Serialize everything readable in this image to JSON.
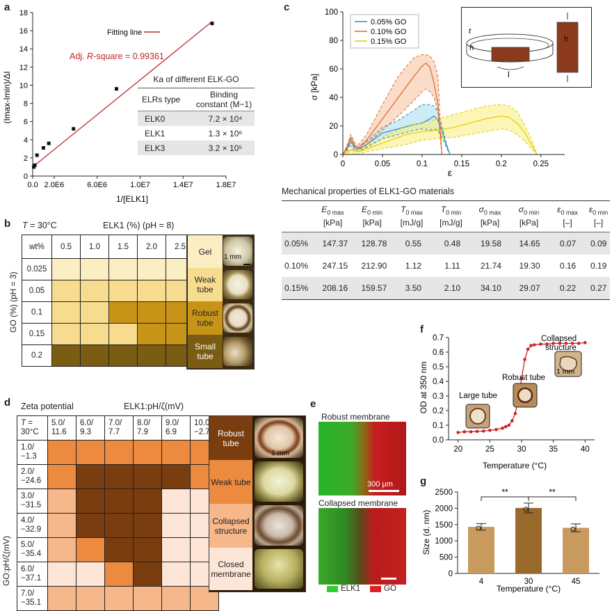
{
  "panel_labels": {
    "a": "a",
    "b": "b",
    "c": "c",
    "d": "d",
    "e": "e",
    "f": "f",
    "g": "g"
  },
  "colors": {
    "fit_line": "#c0282c",
    "tube_light": "#fbeec2",
    "tube_mid": "#f7dc8f",
    "tube_dark": "#c89418",
    "tube_darker": "#7a5c12"
  },
  "panel_a": {
    "legend": "Fitting line",
    "r2_prefix": "Adj. ",
    "r2_italic": "R",
    "r2_suffix": "-square = 0.99361",
    "table": {
      "title": "Ka of different ELK-GO",
      "headers": [
        "ELRs type",
        "Binding",
        "constant (M−1)"
      ],
      "rows": [
        {
          "type": "ELK0",
          "value": "7.2 × 10⁴"
        },
        {
          "type": "ELK1",
          "value": "1.3 × 10⁶"
        },
        {
          "type": "ELK3",
          "value": "3.2 × 10⁵"
        }
      ]
    }
  },
  "panel_b": {
    "temp": "T = 30°C",
    "col_title": "ELK1 (%) (pH = 8)",
    "corner": "wt%",
    "cols": [
      "0.5",
      "1.0",
      "1.5",
      "2.0",
      "2.5"
    ],
    "rows": [
      "0.025",
      "0.05",
      "0.1",
      "0.15",
      "0.2"
    ],
    "row_title": "GO (%) (pH = 3)",
    "grid": [
      [
        1,
        1,
        1,
        1,
        1
      ],
      [
        2,
        2,
        2,
        2,
        2
      ],
      [
        2,
        2,
        3,
        3,
        3
      ],
      [
        2,
        2,
        2,
        3,
        3
      ],
      [
        4,
        4,
        4,
        4,
        4
      ]
    ],
    "legend": [
      "Gel",
      "Weak tube",
      "Robust tube",
      "Small tube"
    ],
    "scale": "1 mm"
  },
  "panel_c_table": {
    "title": "Mechanical properties of ELK1-GO materials",
    "headers": [
      {
        "sym": "E",
        "sub": "0 max",
        "unit": "[kPa]"
      },
      {
        "sym": "E",
        "sub": "0 min",
        "unit": "[kPa]"
      },
      {
        "sym": "T",
        "sub": "0 max",
        "unit": "[mJ/g]"
      },
      {
        "sym": "T",
        "sub": "0 min",
        "unit": "[mJ/g]"
      },
      {
        "sym": "σ",
        "sub": "0 max",
        "unit": "[kPa]"
      },
      {
        "sym": "σ",
        "sub": "0 min",
        "unit": "[kPa]"
      },
      {
        "sym": "ε",
        "sub": "0 max",
        "unit": "[–]"
      },
      {
        "sym": "ε",
        "sub": "0 min",
        "unit": "[–]"
      }
    ],
    "rows": [
      {
        "label": "0.05%",
        "values": [
          "147.37",
          "128.78",
          "0.55",
          "0.48",
          "19.58",
          "14.65",
          "0.07",
          "0.09"
        ]
      },
      {
        "label": "0.10%",
        "values": [
          "247.15",
          "212.90",
          "1.12",
          "1.11",
          "21.74",
          "19.30",
          "0.16",
          "0.19"
        ]
      },
      {
        "label": "0.15%",
        "values": [
          "208.16",
          "159.57",
          "3.50",
          "2.10",
          "34.10",
          "29.07",
          "0.22",
          "0.27"
        ]
      }
    ]
  },
  "panel_c_inset": {
    "t": "t",
    "h": "h",
    "l": "l",
    "h2": "h"
  },
  "panel_d": {
    "title": "Zeta potential",
    "col_title": "ELK1:pH/ζ(mV)",
    "corner1": "T =",
    "corner2": "30°C",
    "row_title": "GO:pH/ζ(mV)",
    "cols": [
      [
        "5.0/",
        "11.6"
      ],
      [
        "6.0/",
        "9.3"
      ],
      [
        "7.0/",
        "7.7"
      ],
      [
        "8.0/",
        "7.9"
      ],
      [
        "9.0/",
        "6.9"
      ],
      [
        "10.0/",
        "−2.7"
      ]
    ],
    "rows": [
      [
        "1.0/",
        "−1.3"
      ],
      [
        "2.0/",
        "−24.6"
      ],
      [
        "3.0/",
        "−31.5"
      ],
      [
        "4.0/",
        "−32.9"
      ],
      [
        "5.0/",
        "−35.4"
      ],
      [
        "6.0/",
        "−37.1"
      ],
      [
        "7.0/",
        "−35.1"
      ]
    ],
    "grid": [
      [
        2,
        2,
        2,
        2,
        2,
        2
      ],
      [
        2,
        1,
        1,
        1,
        1,
        2
      ],
      [
        3,
        1,
        1,
        1,
        4,
        4
      ],
      [
        3,
        1,
        1,
        1,
        4,
        4
      ],
      [
        3,
        2,
        1,
        1,
        4,
        4
      ],
      [
        4,
        4,
        2,
        1,
        4,
        4
      ],
      [
        3,
        3,
        3,
        3,
        3,
        3
      ]
    ],
    "legend": [
      "Robust tube",
      "Weak tube",
      "Collapsed structure",
      "Closed membrane"
    ],
    "colors": {
      "1": "#7a3d10",
      "2": "#ec8a3f",
      "3": "#f6b78a",
      "4": "#fde6d8"
    },
    "scale": "1 mm"
  },
  "panel_e": {
    "title1": "Robust membrane",
    "title2": "Collapsed membrane",
    "scale": "300 μm",
    "legend": [
      "ELK1",
      "GO"
    ]
  }
}
